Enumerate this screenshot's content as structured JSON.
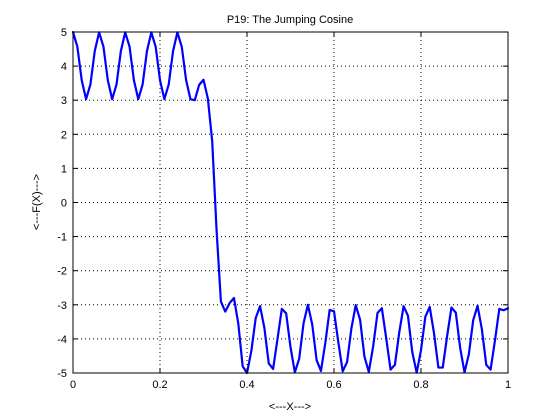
{
  "chart_data": {
    "type": "line",
    "title": "P19: The Jumping Cosine",
    "xlabel": "<---X--->",
    "ylabel": "<---F(X)--->",
    "xlim": [
      0,
      1
    ],
    "ylim": [
      -5,
      5
    ],
    "x_ticks": [
      0,
      0.2,
      0.4,
      0.6,
      0.8,
      1
    ],
    "x_tick_labels": [
      "0",
      "0.2",
      "0.4",
      "0.6",
      "0.8",
      "1"
    ],
    "y_ticks": [
      -5,
      -4,
      -3,
      -2,
      -1,
      0,
      1,
      2,
      3,
      4,
      5
    ],
    "y_tick_labels": [
      "-5",
      "-4",
      "-3",
      "-2",
      "-1",
      "0",
      "1",
      "2",
      "3",
      "4",
      "5"
    ],
    "grid": true,
    "grid_style": "dotted",
    "series_color": "#0000ff",
    "background_color": "#ffffff",
    "series": [
      {
        "x": [
          0,
          0.01,
          0.02,
          0.03,
          0.04,
          0.05,
          0.06,
          0.07,
          0.08,
          0.09,
          0.1,
          0.11,
          0.12,
          0.13,
          0.14,
          0.15,
          0.16,
          0.17,
          0.18,
          0.19,
          0.2,
          0.21,
          0.22,
          0.23,
          0.24,
          0.25,
          0.26,
          0.27,
          0.28,
          0.29,
          0.3,
          0.31,
          0.32,
          0.33,
          0.34,
          0.35,
          0.36,
          0.37,
          0.38,
          0.39,
          0.4,
          0.41,
          0.42,
          0.43,
          0.44,
          0.45,
          0.46,
          0.47,
          0.48,
          0.49,
          0.5,
          0.51,
          0.52,
          0.53,
          0.54,
          0.55,
          0.56,
          0.57,
          0.58,
          0.59,
          0.6,
          0.61,
          0.62,
          0.63,
          0.64,
          0.65,
          0.66,
          0.67,
          0.68,
          0.69,
          0.7,
          0.71,
          0.72,
          0.73,
          0.74,
          0.75,
          0.76,
          0.77,
          0.78,
          0.79,
          0.8,
          0.81,
          0.82,
          0.83,
          0.84,
          0.85,
          0.86,
          0.87,
          0.88,
          0.89,
          0.9,
          0.91,
          0.92,
          0.93,
          0.94,
          0.95,
          0.96,
          0.97,
          0.98,
          0.99,
          1.0
        ],
        "y": [
          5.0,
          4.57,
          3.59,
          3.03,
          3.46,
          4.44,
          4.99,
          4.57,
          3.59,
          3.03,
          3.46,
          4.44,
          4.99,
          4.57,
          3.59,
          3.03,
          3.46,
          4.44,
          4.99,
          4.57,
          3.59,
          3.03,
          3.46,
          4.44,
          4.99,
          4.57,
          3.59,
          3.03,
          3.0,
          3.45,
          3.6,
          3.05,
          1.8,
          -0.8,
          -2.9,
          -3.2,
          -2.95,
          -2.8,
          -3.55,
          -4.8,
          -5.0,
          -4.35,
          -3.39,
          -3.04,
          -3.68,
          -4.72,
          -4.88,
          -4.01,
          -3.12,
          -3.25,
          -4.24,
          -4.98,
          -4.58,
          -3.54,
          -3.0,
          -3.58,
          -4.62,
          -4.94,
          -4.12,
          -3.15,
          -3.19,
          -4.1,
          -4.95,
          -4.68,
          -3.69,
          -3.01,
          -3.44,
          -4.52,
          -4.97,
          -4.22,
          -3.24,
          -3.1,
          -3.98,
          -4.9,
          -4.76,
          -3.81,
          -3.04,
          -3.32,
          -4.39,
          -4.99,
          -4.33,
          -3.35,
          -3.06,
          -3.84,
          -4.84,
          -4.84,
          -3.92,
          -3.08,
          -3.23,
          -4.26,
          -4.98,
          -4.45,
          -3.45,
          -3.03,
          -3.72,
          -4.76,
          -4.9,
          -4.05,
          -3.12,
          -3.16,
          -3.1
        ]
      }
    ]
  }
}
